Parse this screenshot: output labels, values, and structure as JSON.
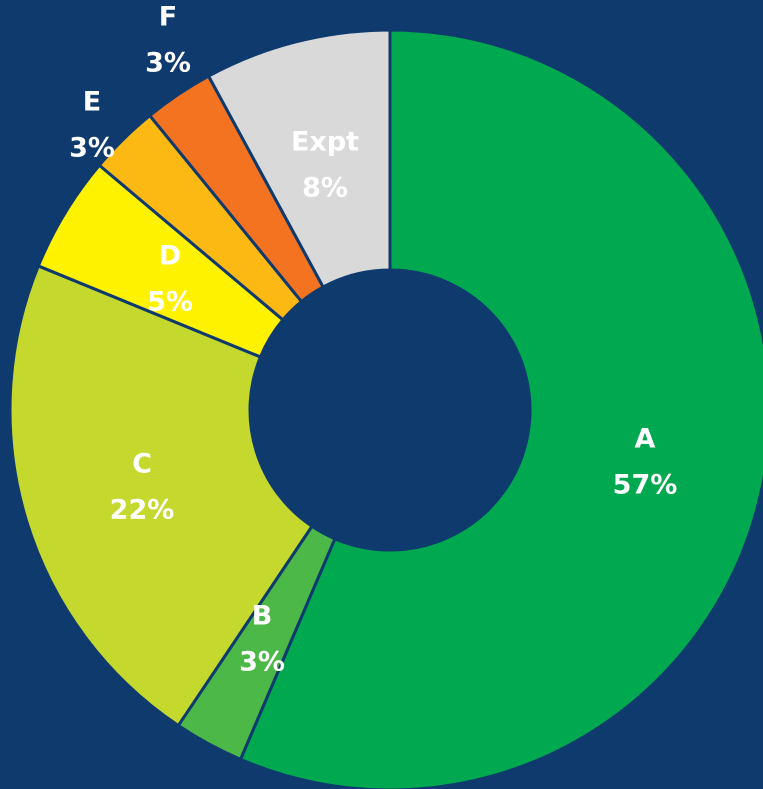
{
  "chart_data": {
    "type": "donut",
    "categories": [
      "A",
      "B",
      "C",
      "D",
      "E",
      "F",
      "Expt"
    ],
    "values": [
      57,
      3,
      22,
      5,
      3,
      3,
      8
    ],
    "value_labels": [
      "57%",
      "3%",
      "22%",
      "5%",
      "3%",
      "3%",
      "8%"
    ],
    "colors": [
      "#00a84f",
      "#4cb848",
      "#c4d82e",
      "#fff200",
      "#fdb913",
      "#f47321",
      "#d9d9d9"
    ]
  }
}
